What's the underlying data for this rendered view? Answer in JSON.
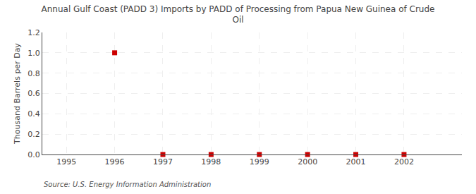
{
  "chart_data": {
    "type": "scatter",
    "title": "Annual Gulf Coast (PADD 3) Imports by PADD of Processing from Papua New Guinea of Crude\nOil",
    "ylabel": "Thousand Barrels per Day",
    "annotations": [
      "Source: U.S. Energy Information Administration"
    ],
    "x": [
      1996,
      1997,
      1998,
      1999,
      2000,
      2001,
      2002
    ],
    "values": [
      1.0,
      0.0,
      0.0,
      0.0,
      0.0,
      0.0,
      0.0
    ],
    "color": "#cc0000",
    "marker": "square",
    "xlim": [
      1994.5,
      2003.2
    ],
    "xticks": [
      1995,
      1996,
      1997,
      1998,
      1999,
      2000,
      2001,
      2002
    ],
    "ylim": [
      0.0,
      1.2
    ],
    "yticks": [
      {
        "value": 0.0,
        "label": "0.0"
      },
      0.2,
      0.4,
      0.6,
      0.8,
      {
        "value": 1.0,
        "label": "1.0"
      },
      1.2
    ],
    "grid": true
  }
}
